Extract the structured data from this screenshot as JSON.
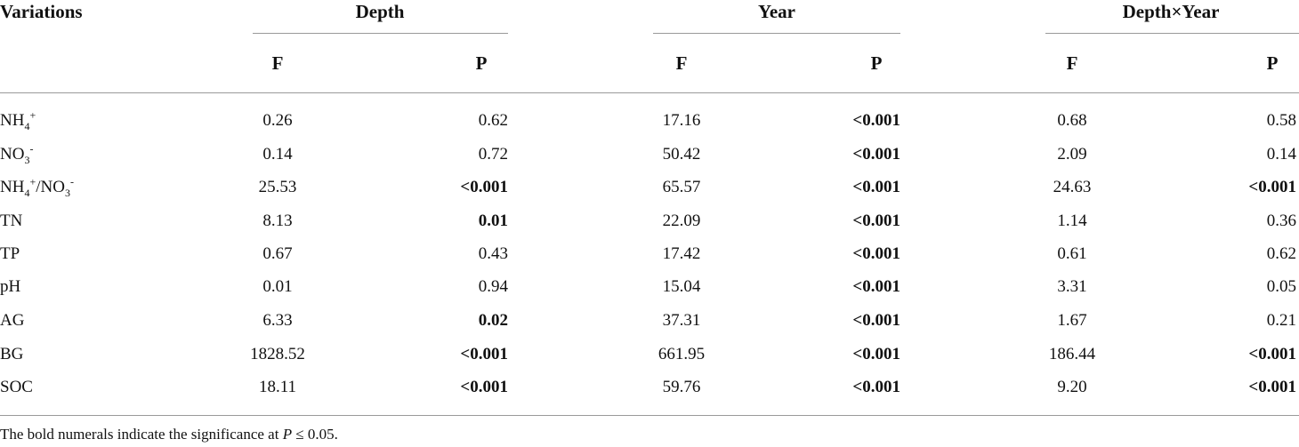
{
  "header": {
    "variations": "Variations",
    "groups": [
      "Depth",
      "Year",
      "Depth×Year"
    ],
    "sub": [
      "F",
      "P",
      "F",
      "P",
      "F",
      "P"
    ]
  },
  "rows": [
    {
      "label": "NH4+",
      "values": [
        "0.26",
        "0.62",
        "17.16",
        "<0.001",
        "0.68",
        "0.58"
      ],
      "bold": [
        false,
        false,
        false,
        true,
        false,
        false
      ]
    },
    {
      "label": "NO3-",
      "values": [
        "0.14",
        "0.72",
        "50.42",
        "<0.001",
        "2.09",
        "0.14"
      ],
      "bold": [
        false,
        false,
        false,
        true,
        false,
        false
      ]
    },
    {
      "label": "NH4+/NO3-",
      "values": [
        "25.53",
        "<0.001",
        "65.57",
        "<0.001",
        "24.63",
        "<0.001"
      ],
      "bold": [
        false,
        true,
        false,
        true,
        false,
        true
      ]
    },
    {
      "label": "TN",
      "values": [
        "8.13",
        "0.01",
        "22.09",
        "<0.001",
        "1.14",
        "0.36"
      ],
      "bold": [
        false,
        true,
        false,
        true,
        false,
        false
      ]
    },
    {
      "label": "TP",
      "values": [
        "0.67",
        "0.43",
        "17.42",
        "<0.001",
        "0.61",
        "0.62"
      ],
      "bold": [
        false,
        false,
        false,
        true,
        false,
        false
      ]
    },
    {
      "label": "pH",
      "values": [
        "0.01",
        "0.94",
        "15.04",
        "<0.001",
        "3.31",
        "0.05"
      ],
      "bold": [
        false,
        false,
        false,
        true,
        false,
        false
      ]
    },
    {
      "label": "AG",
      "values": [
        "6.33",
        "0.02",
        "37.31",
        "<0.001",
        "1.67",
        "0.21"
      ],
      "bold": [
        false,
        true,
        false,
        true,
        false,
        false
      ]
    },
    {
      "label": "BG",
      "values": [
        "1828.52",
        "<0.001",
        "661.95",
        "<0.001",
        "186.44",
        "<0.001"
      ],
      "bold": [
        false,
        true,
        false,
        true,
        false,
        true
      ]
    },
    {
      "label": "SOC",
      "values": [
        "18.11",
        "<0.001",
        "59.76",
        "<0.001",
        "9.20",
        "<0.001"
      ],
      "bold": [
        false,
        true,
        false,
        true,
        false,
        true
      ]
    }
  ],
  "footnote": "The bold numerals indicate the significance at P ≤ 0.05."
}
